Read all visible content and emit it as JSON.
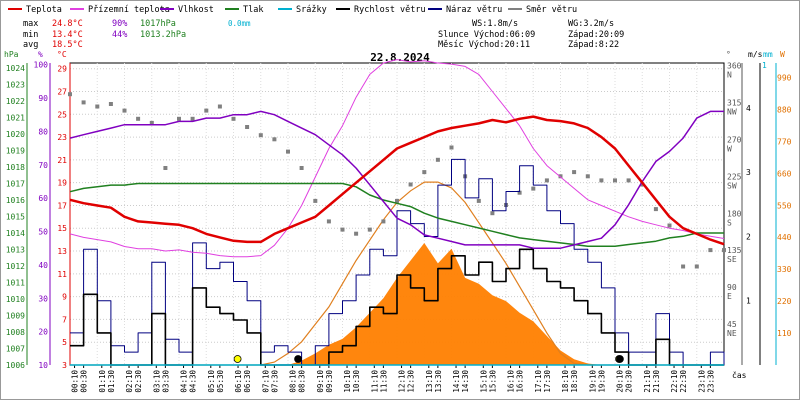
{
  "legend": [
    {
      "label": "Teplota",
      "color": "#e00000"
    },
    {
      "label": "Přízemní teplota",
      "color": "#e040e0"
    },
    {
      "label": "Vlhkost",
      "color": "#8000c0"
    },
    {
      "label": "Tlak",
      "color": "#208020"
    },
    {
      "label": "Srážky",
      "color": "#00b0d0"
    },
    {
      "label": "Rychlost větru",
      "color": "#000000"
    },
    {
      "label": "Náraz větru",
      "color": "#000080"
    },
    {
      "label": "Směr větru",
      "color": "#808080"
    }
  ],
  "stats": {
    "max_prefix": "max",
    "min_prefix": "min",
    "avg_prefix": "avg",
    "max_temp": "24.8°C",
    "max_hum": "90%",
    "max_press": "1017hPa",
    "max_rain": "0.0mm",
    "min_temp": "13.4°C",
    "min_hum": "44%",
    "min_press": "1013.2hPa",
    "avg_temp": "18.5°C",
    "ws": "WS:1.8m/s",
    "wg": "WG:3.2m/s",
    "sun_rise": "Slunce Východ:06:09",
    "sun_set": "Západ:20:09",
    "moon_rise": "Měsíc  Východ:20:11",
    "moon_set": "Západ:8:22"
  },
  "axis_units": {
    "hpa": "hPa",
    "pct": "%",
    "degc": "°C",
    "deg": "°",
    "ms": "m/s",
    "mm": "mm",
    "w": "W",
    "time": "čas"
  },
  "chart_data": {
    "type": "line",
    "title": "22.8.2024",
    "x_ticks": [
      "00:10",
      "00:30",
      "01:10",
      "01:30",
      "02:10",
      "02:30",
      "03:10",
      "03:30",
      "04:10",
      "04:30",
      "05:10",
      "05:30",
      "06:10",
      "06:30",
      "07:10",
      "07:30",
      "08:10",
      "08:30",
      "09:10",
      "09:30",
      "10:10",
      "10:30",
      "11:10",
      "11:30",
      "12:10",
      "12:30",
      "13:10",
      "13:30",
      "14:10",
      "14:30",
      "15:10",
      "15:30",
      "16:10",
      "16:30",
      "17:10",
      "17:30",
      "18:10",
      "18:30",
      "19:10",
      "19:30",
      "20:10",
      "20:30",
      "21:10",
      "21:30",
      "22:10",
      "22:30",
      "23:10",
      "23:30"
    ],
    "axes": {
      "pressure": {
        "label": "hPa",
        "ticks": [
          "1024",
          "1023",
          "1022",
          "1021",
          "1020",
          "1019",
          "1018",
          "1017",
          "1016",
          "1015",
          "1014",
          "1013",
          "1012",
          "1011",
          "1010",
          "1009",
          "1008",
          "1007",
          "1006"
        ]
      },
      "humidity": {
        "label": "%",
        "ticks": [
          "100",
          "90",
          "80",
          "70",
          "60",
          "50",
          "40",
          "30",
          "20",
          "10"
        ]
      },
      "temperature": {
        "label": "°C",
        "ticks": [
          "29",
          "27",
          "25",
          "23",
          "21",
          "19",
          "17",
          "15",
          "13",
          "11",
          "9",
          "7",
          "5",
          "3"
        ]
      },
      "direction": {
        "label": "°",
        "ticks": [
          "360",
          "315",
          "270",
          "225",
          "180",
          "135",
          "90",
          "45"
        ],
        "cardinals": [
          "N",
          "NW",
          "W",
          "SW",
          "S",
          "SE",
          "E",
          "NE"
        ]
      },
      "wind": {
        "label": "m/s",
        "ticks": [
          "4",
          "3",
          "2",
          "1"
        ]
      },
      "rain": {
        "label": "mm",
        "ticks": [
          "1"
        ]
      },
      "radiation": {
        "label": "W",
        "ticks": [
          "990",
          "880",
          "770",
          "660",
          "550",
          "440",
          "330",
          "220",
          "110"
        ]
      }
    },
    "temperature": [
      17.5,
      17.2,
      17.0,
      16.8,
      16.0,
      15.6,
      15.5,
      15.4,
      15.3,
      15.0,
      14.5,
      14.2,
      13.9,
      13.8,
      13.8,
      14.5,
      15.0,
      15.5,
      16.0,
      17.0,
      18.0,
      19.0,
      20.0,
      21.0,
      22.0,
      22.5,
      23.0,
      23.5,
      23.8,
      24.0,
      24.2,
      24.5,
      24.3,
      24.6,
      24.8,
      24.5,
      24.4,
      24.2,
      23.8,
      23.0,
      22.0,
      20.5,
      19.0,
      17.5,
      16.0,
      15.0,
      14.5,
      14.0,
      13.6
    ],
    "humidity": [
      78,
      79,
      80,
      81,
      82,
      82,
      82,
      82,
      83,
      83,
      84,
      84,
      85,
      85,
      86,
      85,
      83,
      81,
      79,
      76,
      73,
      69,
      64,
      59,
      54,
      52,
      49,
      48,
      47,
      46,
      46,
      46,
      46,
      46,
      45,
      45,
      45,
      46,
      47,
      48,
      52,
      58,
      65,
      71,
      74,
      78,
      84,
      86,
      86
    ],
    "pressure": [
      1016.5,
      1016.7,
      1016.8,
      1016.9,
      1016.9,
      1017.0,
      1017.0,
      1017.0,
      1017.0,
      1017.0,
      1017.0,
      1017.0,
      1017.0,
      1017.0,
      1017.0,
      1017.0,
      1017.0,
      1017.0,
      1017.0,
      1017.0,
      1017.0,
      1016.8,
      1016.3,
      1016.0,
      1015.8,
      1015.6,
      1015.2,
      1014.9,
      1014.7,
      1014.5,
      1014.3,
      1014.1,
      1013.9,
      1013.7,
      1013.6,
      1013.5,
      1013.4,
      1013.3,
      1013.2,
      1013.2,
      1013.2,
      1013.3,
      1013.4,
      1013.5,
      1013.7,
      1013.8,
      1014.0,
      1014.0,
      1014.0
    ],
    "ground_temperature": [
      14.5,
      14.2,
      14.0,
      13.8,
      13.4,
      13.2,
      13.2,
      13.0,
      13.1,
      12.9,
      12.8,
      12.6,
      12.5,
      12.5,
      12.6,
      13.5,
      15.0,
      17.0,
      19.5,
      22.0,
      24.0,
      26.5,
      28.5,
      29.5,
      29.8,
      29.6,
      29.7,
      29.5,
      29.4,
      29.2,
      28.5,
      27.0,
      25.5,
      24.0,
      22.0,
      20.5,
      19.5,
      18.5,
      17.5,
      17.0,
      16.5,
      16.0,
      15.6,
      15.3,
      15.0,
      14.8,
      14.5,
      14.3,
      14.1
    ],
    "wind_speed": [
      0.3,
      1.1,
      0.5,
      0,
      0,
      0,
      0.8,
      0,
      0,
      1.2,
      0.9,
      0.8,
      0.7,
      0.5,
      0,
      0,
      0,
      0,
      0,
      0.2,
      0.3,
      0.6,
      0.9,
      0.8,
      1.4,
      1.2,
      1.0,
      1.5,
      1.7,
      1.4,
      1.6,
      1.3,
      1.5,
      1.8,
      1.5,
      1.3,
      1.2,
      1.0,
      0.8,
      0.5,
      0.2,
      0,
      0,
      0.4,
      0,
      0,
      0,
      0,
      0
    ],
    "wind_gust": [
      0.5,
      1.8,
      1.0,
      0.3,
      0.2,
      0.5,
      1.6,
      0.4,
      0.2,
      1.9,
      1.5,
      1.6,
      1.3,
      1.0,
      0.2,
      0.3,
      0.2,
      0,
      0.3,
      0.8,
      1.0,
      1.4,
      1.8,
      1.7,
      2.4,
      2.2,
      2.0,
      2.8,
      3.2,
      2.6,
      2.9,
      2.4,
      2.7,
      3.1,
      2.8,
      2.4,
      2.2,
      1.8,
      1.6,
      1.2,
      0.5,
      0.2,
      0.2,
      0.8,
      0.2,
      0,
      0,
      0.2,
      0
    ],
    "wind_direction": [
      330,
      320,
      315,
      318,
      310,
      300,
      295,
      240,
      300,
      300,
      310,
      315,
      300,
      290,
      280,
      275,
      260,
      240,
      200,
      175,
      165,
      160,
      165,
      175,
      200,
      220,
      235,
      250,
      265,
      230,
      200,
      185,
      195,
      210,
      215,
      225,
      230,
      235,
      230,
      225,
      225,
      225,
      220,
      190,
      170,
      120,
      120,
      140,
      140
    ],
    "solar_radiation": [
      0,
      0,
      0,
      0,
      0,
      0,
      0,
      0,
      0,
      0,
      0,
      0,
      0,
      0,
      0,
      10,
      40,
      80,
      140,
      200,
      280,
      360,
      430,
      500,
      560,
      600,
      630,
      630,
      610,
      560,
      490,
      420,
      350,
      270,
      190,
      110,
      40,
      5,
      0,
      0,
      0,
      0,
      0,
      0,
      0,
      0,
      0,
      0,
      0
    ],
    "measured_radiation": [
      0,
      0,
      0,
      0,
      0,
      0,
      0,
      0,
      0,
      0,
      0,
      0,
      0,
      0,
      0,
      0,
      0,
      15,
      40,
      70,
      90,
      130,
      180,
      230,
      300,
      360,
      420,
      350,
      400,
      300,
      280,
      240,
      220,
      180,
      150,
      100,
      50,
      20,
      5,
      0,
      0,
      0,
      0,
      0,
      0,
      0,
      0,
      0,
      0
    ],
    "rain_mm": [
      0,
      0,
      0,
      0,
      0,
      0,
      0,
      0,
      0,
      0,
      0,
      0,
      0,
      0,
      0,
      0,
      0,
      0,
      0,
      0,
      0,
      0,
      0,
      0,
      0,
      0,
      0,
      0,
      0,
      0,
      0,
      0,
      0,
      0,
      0,
      0,
      0,
      0,
      0,
      0,
      0,
      0,
      0,
      0,
      0,
      0,
      0,
      0,
      0
    ],
    "sun_marker_times": [
      6.15,
      20.15
    ],
    "moon_marker_times": [
      8.37,
      20.18
    ]
  }
}
